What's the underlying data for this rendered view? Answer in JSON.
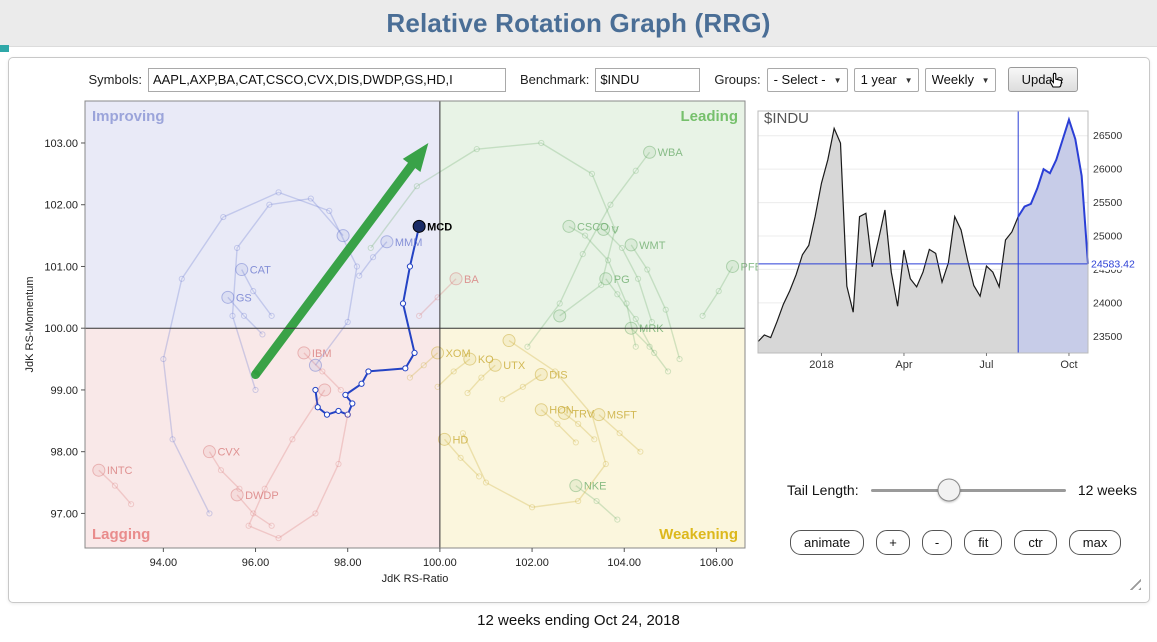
{
  "header": {
    "title": "Relative Rotation Graph (RRG)"
  },
  "toolbar": {
    "symbols_label": "Symbols:",
    "symbols_value": "AAPL,AXP,BA,CAT,CSCO,CVX,DIS,DWDP,GS,HD,I",
    "benchmark_label": "Benchmark:",
    "benchmark_value": "$INDU",
    "groups_label": "Groups:",
    "groups_selected": "- Select -",
    "period_selected": "1 year",
    "frequency_selected": "Weekly",
    "update_label": "Update"
  },
  "tail": {
    "label": "Tail Length:",
    "value_label": "12 weeks",
    "percent": 40
  },
  "action_buttons": [
    "animate",
    "+",
    "-",
    "fit",
    "ctr",
    "max"
  ],
  "caption": "12 weeks ending Oct 24, 2018",
  "chart_data": [
    {
      "type": "scatter",
      "name": "relative-rotation-graph",
      "xlabel": "JdK RS-Ratio",
      "ylabel": "JdK RS-Momentum",
      "xlim": [
        92.3,
        106.62
      ],
      "ylim": [
        96.44,
        103.68
      ],
      "x_ticks": [
        94,
        96,
        98,
        100,
        102,
        104,
        106
      ],
      "y_ticks": [
        97,
        98,
        99,
        100,
        101,
        102,
        103
      ],
      "center": [
        100,
        100
      ],
      "quadrants": [
        {
          "id": "improving",
          "label": "Improving",
          "bg": "#e9eaf7",
          "label_color": "#9ba4da",
          "pos": "top-left"
        },
        {
          "id": "leading",
          "label": "Leading",
          "bg": "#e8f3e6",
          "label_color": "#76c06c",
          "pos": "top-right"
        },
        {
          "id": "lagging",
          "label": "Lagging",
          "bg": "#f9e8e8",
          "label_color": "#e98c8c",
          "pos": "bottom-left"
        },
        {
          "id": "weakening",
          "label": "Weakening",
          "bg": "#fbf6dd",
          "label_color": "#ddb81c",
          "pos": "bottom-right"
        }
      ],
      "arrow": {
        "from": [
          96.0,
          99.25
        ],
        "to": [
          99.75,
          103.0
        ],
        "color": "#2f9e3e"
      },
      "trails": [
        {
          "symbol": "MCD",
          "color": "#2443c4",
          "highlight": true,
          "points": [
            [
              97.3,
              99.0
            ],
            [
              97.35,
              98.72
            ],
            [
              97.55,
              98.6
            ],
            [
              97.8,
              98.66
            ],
            [
              98.0,
              98.6
            ],
            [
              98.1,
              98.78
            ],
            [
              97.95,
              98.92
            ],
            [
              98.3,
              99.1
            ],
            [
              98.45,
              99.3
            ],
            [
              99.25,
              99.35
            ],
            [
              99.45,
              99.6
            ],
            [
              99.2,
              100.4
            ],
            [
              99.35,
              101.0
            ],
            [
              99.55,
              101.65
            ]
          ]
        },
        {
          "symbol": "WBA",
          "color": "#6fae6f",
          "points": [
            [
              101.9,
              99.7
            ],
            [
              102.6,
              100.4
            ],
            [
              103.1,
              101.2
            ],
            [
              103.7,
              102.0
            ],
            [
              104.25,
              102.55
            ],
            [
              104.55,
              102.85
            ]
          ]
        },
        {
          "symbol": "CSCO",
          "color": "#6fae6f",
          "points": [
            [
              104.25,
              99.7
            ],
            [
              104.05,
              100.4
            ],
            [
              103.65,
              101.1
            ],
            [
              103.15,
              101.5
            ],
            [
              102.8,
              101.65
            ]
          ]
        },
        {
          "symbol": "V",
          "color": "#6fae6f",
          "points": [
            [
              104.6,
              100.1
            ],
            [
              104.3,
              100.8
            ],
            [
              103.95,
              101.3
            ],
            [
              103.55,
              101.6
            ]
          ]
        },
        {
          "symbol": "WMT",
          "color": "#6fae6f",
          "points": [
            [
              105.2,
              99.5
            ],
            [
              104.9,
              100.3
            ],
            [
              104.5,
              100.95
            ],
            [
              104.15,
              101.35
            ]
          ]
        },
        {
          "symbol": "PG",
          "color": "#6fae6f",
          "points": [
            [
              104.65,
              99.6
            ],
            [
              104.25,
              100.15
            ],
            [
              103.85,
              100.55
            ],
            [
              103.6,
              100.8
            ]
          ]
        },
        {
          "symbol": "PFE",
          "color": "#6fae6f",
          "points": [
            [
              105.7,
              100.2
            ],
            [
              106.05,
              100.6
            ],
            [
              106.35,
              101.0
            ]
          ]
        },
        {
          "symbol": "MRK",
          "color": "#6fae6f",
          "points": [
            [
              104.95,
              99.3
            ],
            [
              104.55,
              99.7
            ],
            [
              104.15,
              100.0
            ]
          ]
        },
        {
          "symbol": "NKE",
          "color": "#6fae6f",
          "points": [
            [
              103.85,
              96.9
            ],
            [
              103.4,
              97.2
            ],
            [
              102.95,
              97.45
            ]
          ]
        },
        {
          "symbol": "MSFT",
          "color": "#c9ab35",
          "points": [
            [
              104.35,
              98.0
            ],
            [
              103.9,
              98.3
            ],
            [
              103.45,
              98.6
            ]
          ]
        },
        {
          "symbol": "TRV",
          "color": "#c9ab35",
          "points": [
            [
              103.35,
              98.2
            ],
            [
              103.0,
              98.45
            ],
            [
              102.7,
              98.62
            ]
          ]
        },
        {
          "symbol": "HON",
          "color": "#c9ab35",
          "points": [
            [
              102.95,
              98.15
            ],
            [
              102.55,
              98.45
            ],
            [
              102.2,
              98.68
            ]
          ]
        },
        {
          "symbol": "DIS",
          "color": "#c9ab35",
          "points": [
            [
              101.35,
              98.85
            ],
            [
              101.8,
              99.05
            ],
            [
              102.2,
              99.25
            ]
          ]
        },
        {
          "symbol": "KO",
          "color": "#c9ab35",
          "points": [
            [
              99.95,
              99.05
            ],
            [
              100.3,
              99.3
            ],
            [
              100.65,
              99.5
            ]
          ]
        },
        {
          "symbol": "UTX",
          "color": "#c9ab35",
          "points": [
            [
              100.6,
              98.95
            ],
            [
              100.9,
              99.2
            ],
            [
              101.2,
              99.4
            ]
          ]
        },
        {
          "symbol": "XOM",
          "color": "#c9ab35",
          "points": [
            [
              99.35,
              99.2
            ],
            [
              99.65,
              99.4
            ],
            [
              99.95,
              99.6
            ]
          ]
        },
        {
          "symbol": "HD",
          "color": "#c9ab35",
          "points": [
            [
              100.85,
              97.6
            ],
            [
              100.45,
              97.9
            ],
            [
              100.1,
              98.2
            ]
          ]
        },
        {
          "symbol": "BA",
          "color": "#d97c7c",
          "points": [
            [
              99.55,
              100.2
            ],
            [
              99.95,
              100.5
            ],
            [
              100.35,
              100.8
            ]
          ]
        },
        {
          "symbol": "MMM",
          "color": "#6b79cf",
          "points": [
            [
              98.25,
              100.85
            ],
            [
              98.55,
              101.15
            ],
            [
              98.85,
              101.4
            ]
          ]
        },
        {
          "symbol": "CAT",
          "color": "#6b79cf",
          "points": [
            [
              96.35,
              100.2
            ],
            [
              95.95,
              100.6
            ],
            [
              95.7,
              100.95
            ]
          ]
        },
        {
          "symbol": "GS",
          "color": "#6b79cf",
          "points": [
            [
              96.15,
              99.9
            ],
            [
              95.75,
              100.2
            ],
            [
              95.4,
              100.5
            ]
          ]
        },
        {
          "symbol": "IBM",
          "color": "#d97c7c",
          "points": [
            [
              97.85,
              99.0
            ],
            [
              97.45,
              99.3
            ],
            [
              97.05,
              99.6
            ]
          ]
        },
        {
          "symbol": "CVX",
          "color": "#d97c7c",
          "points": [
            [
              95.65,
              97.4
            ],
            [
              95.25,
              97.7
            ],
            [
              95.0,
              98.0
            ]
          ]
        },
        {
          "symbol": "DWDP",
          "color": "#d97c7c",
          "points": [
            [
              96.35,
              96.8
            ],
            [
              95.95,
              97.0
            ],
            [
              95.6,
              97.3
            ]
          ]
        },
        {
          "symbol": "INTC",
          "color": "#d97c7c",
          "points": [
            [
              93.3,
              97.15
            ],
            [
              92.95,
              97.45
            ],
            [
              92.6,
              97.7
            ]
          ]
        },
        {
          "symbol": "",
          "label": false,
          "color": "#6b79cf",
          "points": [
            [
              95.0,
              97.0
            ],
            [
              94.2,
              98.2
            ],
            [
              94.0,
              99.5
            ],
            [
              94.4,
              100.8
            ],
            [
              95.3,
              101.8
            ],
            [
              96.5,
              102.2
            ],
            [
              97.6,
              101.9
            ],
            [
              98.2,
              101.0
            ],
            [
              98.0,
              100.1
            ],
            [
              97.3,
              99.4
            ]
          ]
        },
        {
          "symbol": "",
          "label": false,
          "color": "#6b79cf",
          "points": [
            [
              96.0,
              99.0
            ],
            [
              95.5,
              100.2
            ],
            [
              95.6,
              101.3
            ],
            [
              96.3,
              102.0
            ],
            [
              97.2,
              102.1
            ],
            [
              97.9,
              101.5
            ]
          ]
        },
        {
          "symbol": "",
          "label": false,
          "color": "#6fae6f",
          "points": [
            [
              98.5,
              101.3
            ],
            [
              99.5,
              102.3
            ],
            [
              100.8,
              102.9
            ],
            [
              102.2,
              103.0
            ],
            [
              103.3,
              102.5
            ],
            [
              103.8,
              101.6
            ],
            [
              103.5,
              100.7
            ],
            [
              102.6,
              100.2
            ]
          ]
        },
        {
          "symbol": "",
          "label": false,
          "color": "#d97c7c",
          "points": [
            [
              98.0,
              98.6
            ],
            [
              97.8,
              97.8
            ],
            [
              97.3,
              97.0
            ],
            [
              96.5,
              96.6
            ],
            [
              95.85,
              96.8
            ],
            [
              96.2,
              97.4
            ],
            [
              96.8,
              98.2
            ],
            [
              97.5,
              99.0
            ]
          ]
        },
        {
          "symbol": "",
          "label": false,
          "color": "#c9ab35",
          "points": [
            [
              100.5,
              98.3
            ],
            [
              101.0,
              97.5
            ],
            [
              102.0,
              97.1
            ],
            [
              103.0,
              97.2
            ],
            [
              103.6,
              97.8
            ],
            [
              103.3,
              98.6
            ],
            [
              102.5,
              99.3
            ],
            [
              101.5,
              99.8
            ]
          ]
        }
      ]
    },
    {
      "type": "area",
      "name": "benchmark-price-chart",
      "title": "$INDU",
      "x_labels": [
        "2018",
        "Apr",
        "Jul",
        "Oct"
      ],
      "x_label_positions": [
        10,
        23,
        36,
        49
      ],
      "y_ticks": [
        23500,
        24000,
        24500,
        25000,
        25500,
        26000,
        26500
      ],
      "ylim": [
        23250,
        26870
      ],
      "values": [
        23420,
        23520,
        23480,
        23720,
        23980,
        24180,
        24420,
        24720,
        24860,
        25290,
        25790,
        26140,
        26610,
        26390,
        24250,
        23860,
        25290,
        25340,
        24540,
        24950,
        25390,
        24460,
        23950,
        24790,
        24360,
        24240,
        24460,
        24800,
        24740,
        24310,
        24600,
        25290,
        25090,
        24650,
        24260,
        24100,
        24550,
        24460,
        24240,
        24940,
        25060,
        25290,
        25440,
        25480,
        25710,
        26000,
        25940,
        26140,
        26440,
        26740,
        26450,
        25900,
        24583.42
      ],
      "highlight_last_n": 12,
      "last_value": 24583.42,
      "last_value_label": "24583.42",
      "line_color": "#1a1a1a",
      "highlight_color": "#2b3fd6",
      "fill_color": "#d7d7d7",
      "highlight_fill": "#c7cce8"
    }
  ]
}
